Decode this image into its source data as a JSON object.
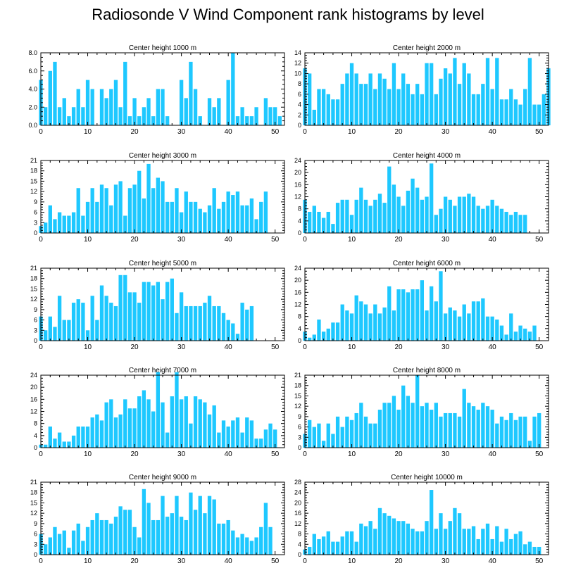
{
  "title": "Radiosonde V Wind Component rank histograms by level",
  "colors": {
    "bar": "#1EC8FF",
    "axis": "#000000"
  },
  "chart_data": [
    {
      "type": "bar",
      "title": "Center height 1000 m",
      "xlim": [
        0,
        52
      ],
      "ylim": [
        0,
        8
      ],
      "yticks": [
        0,
        2,
        4,
        6,
        8
      ],
      "ytick_labels": [
        "0.0",
        "2.0",
        "4.0",
        "6.0",
        "8.0"
      ],
      "xticks": [
        0,
        10,
        20,
        30,
        40,
        50
      ],
      "values": [
        5,
        2,
        6,
        7,
        2,
        3,
        1,
        2,
        4,
        2,
        5,
        4,
        0,
        4,
        3,
        4,
        5,
        2,
        7,
        1,
        3,
        1,
        2,
        3,
        1,
        4,
        4,
        1,
        0,
        0,
        5,
        3,
        7,
        4,
        1,
        0,
        3,
        2,
        3,
        0,
        5,
        8,
        1,
        2,
        1,
        1,
        2,
        0,
        3,
        2,
        2,
        1,
        0
      ]
    },
    {
      "type": "bar",
      "title": "Center height 2000 m",
      "xlim": [
        0,
        52
      ],
      "ylim": [
        0,
        14
      ],
      "yticks": [
        0,
        2,
        4,
        6,
        8,
        10,
        12,
        14
      ],
      "ytick_labels": [
        "0",
        "2",
        "4",
        "6",
        "8",
        "10",
        "12",
        "14"
      ],
      "xticks": [
        0,
        10,
        20,
        30,
        40,
        50
      ],
      "values": [
        11,
        10,
        3,
        7,
        7,
        6,
        5,
        5,
        8,
        10,
        12,
        10,
        8,
        8,
        10,
        7,
        10,
        9,
        7,
        12,
        7,
        10,
        8,
        6,
        8,
        6,
        12,
        12,
        6,
        9,
        11,
        10,
        13,
        8,
        12,
        10,
        6,
        6,
        8,
        13,
        7,
        13,
        5,
        5,
        7,
        5,
        4,
        7,
        13,
        4,
        4,
        6,
        11
      ]
    },
    {
      "type": "bar",
      "title": "Center height 3000 m",
      "xlim": [
        0,
        52
      ],
      "ylim": [
        0,
        21
      ],
      "yticks": [
        0,
        3,
        6,
        9,
        12,
        15,
        18,
        21
      ],
      "ytick_labels": [
        "0",
        "3",
        "6",
        "9",
        "12",
        "15",
        "18",
        "21"
      ],
      "xticks": [
        0,
        10,
        20,
        30,
        40,
        50
      ],
      "values": [
        2,
        3,
        8,
        4,
        6,
        5,
        5,
        6,
        13,
        5,
        9,
        13,
        9,
        14,
        13,
        8,
        14,
        15,
        5,
        13,
        14,
        18,
        10,
        20,
        13,
        16,
        15,
        9,
        9,
        13,
        6,
        12,
        9,
        9,
        7,
        6,
        8,
        13,
        7,
        9,
        12,
        11,
        12,
        8,
        8,
        10,
        4,
        9,
        12,
        0,
        0,
        0,
        0
      ]
    },
    {
      "type": "bar",
      "title": "Center height 4000 m",
      "xlim": [
        0,
        52
      ],
      "ylim": [
        0,
        24
      ],
      "yticks": [
        0,
        4,
        8,
        12,
        16,
        20,
        24
      ],
      "ytick_labels": [
        "0",
        "4",
        "8",
        "12",
        "16",
        "20",
        "24"
      ],
      "xticks": [
        0,
        10,
        20,
        30,
        40,
        50
      ],
      "values": [
        11,
        7,
        9,
        7,
        5,
        7,
        3,
        10,
        11,
        11,
        6,
        11,
        15,
        11,
        9,
        11,
        13,
        10,
        22,
        16,
        12,
        9,
        14,
        18,
        15,
        11,
        12,
        23,
        6,
        8,
        12,
        11,
        9,
        12,
        12,
        13,
        12,
        9,
        8,
        9,
        11,
        9,
        8,
        7,
        6,
        7,
        6,
        6,
        0,
        0,
        0,
        0,
        0
      ]
    },
    {
      "type": "bar",
      "title": "Center height 5000 m",
      "xlim": [
        0,
        52
      ],
      "ylim": [
        0,
        21
      ],
      "yticks": [
        0,
        3,
        6,
        9,
        12,
        15,
        18,
        21
      ],
      "ytick_labels": [
        "0",
        "3",
        "6",
        "9",
        "12",
        "15",
        "18",
        "21"
      ],
      "xticks": [
        0,
        10,
        20,
        30,
        40,
        50
      ],
      "values": [
        7,
        3,
        7,
        4,
        13,
        6,
        6,
        11,
        12,
        11,
        3,
        13,
        6,
        16,
        13,
        11,
        10,
        19,
        19,
        14,
        14,
        11,
        17,
        17,
        16,
        17,
        12,
        17,
        18,
        8,
        14,
        10,
        10,
        10,
        10,
        11,
        13,
        10,
        10,
        8,
        6,
        5,
        2,
        11,
        9,
        10,
        0,
        0,
        0,
        0,
        0,
        0,
        0
      ]
    },
    {
      "type": "bar",
      "title": "Center height 6000 m",
      "xlim": [
        0,
        52
      ],
      "ylim": [
        0,
        24
      ],
      "yticks": [
        0,
        4,
        8,
        12,
        16,
        20,
        24
      ],
      "ytick_labels": [
        "0",
        "4",
        "8",
        "12",
        "16",
        "20",
        "24"
      ],
      "xticks": [
        0,
        10,
        20,
        30,
        40,
        50
      ],
      "values": [
        3,
        1,
        2,
        7,
        3,
        4,
        6,
        6,
        12,
        10,
        9,
        15,
        13,
        12,
        9,
        12,
        9,
        11,
        18,
        10,
        17,
        17,
        16,
        17,
        17,
        20,
        10,
        18,
        13,
        23,
        9,
        11,
        10,
        8,
        12,
        9,
        13,
        13,
        14,
        8,
        8,
        7,
        5,
        2,
        9,
        3,
        5,
        4,
        3,
        5,
        0,
        0,
        0
      ]
    },
    {
      "type": "bar",
      "title": "Center height 7000 m",
      "xlim": [
        0,
        52
      ],
      "ylim": [
        0,
        24
      ],
      "yticks": [
        0,
        4,
        8,
        12,
        16,
        20,
        24
      ],
      "ytick_labels": [
        "0",
        "4",
        "8",
        "12",
        "16",
        "20",
        "24"
      ],
      "xticks": [
        0,
        10,
        20,
        30,
        40,
        50
      ],
      "values": [
        1,
        1,
        7,
        3,
        5,
        2,
        2,
        4,
        7,
        7,
        7,
        10,
        11,
        9,
        15,
        16,
        10,
        11,
        16,
        13,
        13,
        17,
        19,
        16,
        12,
        25,
        15,
        5,
        17,
        25,
        16,
        17,
        8,
        17,
        16,
        15,
        11,
        14,
        5,
        9,
        7,
        9,
        10,
        5,
        10,
        9,
        3,
        3,
        6,
        8,
        6,
        0,
        0
      ]
    },
    {
      "type": "bar",
      "title": "Center height 8000 m",
      "xlim": [
        0,
        52
      ],
      "ylim": [
        0,
        21
      ],
      "yticks": [
        0,
        3,
        6,
        9,
        12,
        15,
        18,
        21
      ],
      "ytick_labels": [
        "0",
        "3",
        "6",
        "9",
        "12",
        "15",
        "18",
        "21"
      ],
      "xticks": [
        0,
        10,
        20,
        30,
        40,
        50
      ],
      "values": [
        4,
        8,
        6,
        7,
        2,
        7,
        4,
        9,
        6,
        9,
        8,
        10,
        13,
        9,
        7,
        7,
        11,
        13,
        13,
        15,
        11,
        18,
        15,
        13,
        21,
        12,
        13,
        11,
        13,
        9,
        10,
        10,
        10,
        9,
        17,
        13,
        12,
        11,
        13,
        12,
        11,
        7,
        9,
        8,
        10,
        8,
        9,
        9,
        2,
        9,
        10,
        0,
        0
      ]
    },
    {
      "type": "bar",
      "title": "Center height 9000 m",
      "xlim": [
        0,
        52
      ],
      "ylim": [
        0,
        21
      ],
      "yticks": [
        0,
        3,
        6,
        9,
        12,
        15,
        18,
        21
      ],
      "ytick_labels": [
        "0",
        "3",
        "6",
        "9",
        "12",
        "15",
        "18",
        "21"
      ],
      "xticks": [
        0,
        10,
        20,
        30,
        40,
        50
      ],
      "values": [
        6,
        3,
        5,
        8,
        6,
        7,
        2,
        7,
        9,
        4,
        8,
        10,
        12,
        10,
        10,
        9,
        11,
        14,
        13,
        13,
        8,
        5,
        19,
        15,
        10,
        10,
        17,
        11,
        12,
        17,
        11,
        10,
        18,
        13,
        17,
        12,
        17,
        16,
        9,
        9,
        10,
        7,
        5,
        6,
        5,
        4,
        5,
        8,
        15,
        8,
        0,
        0,
        0
      ]
    },
    {
      "type": "bar",
      "title": "Center height 10000 m",
      "xlim": [
        0,
        52
      ],
      "ylim": [
        0,
        28
      ],
      "yticks": [
        0,
        4,
        8,
        12,
        16,
        20,
        24,
        28
      ],
      "ytick_labels": [
        "0",
        "4",
        "8",
        "12",
        "16",
        "20",
        "24",
        "28"
      ],
      "xticks": [
        0,
        10,
        20,
        30,
        40,
        50
      ],
      "values": [
        2,
        3,
        8,
        6,
        7,
        9,
        5,
        5,
        7,
        9,
        9,
        5,
        12,
        11,
        13,
        10,
        18,
        16,
        15,
        14,
        13,
        13,
        12,
        10,
        9,
        9,
        13,
        25,
        10,
        16,
        10,
        13,
        18,
        16,
        10,
        10,
        11,
        6,
        10,
        12,
        6,
        11,
        5,
        10,
        6,
        8,
        9,
        4,
        5,
        3,
        3,
        0,
        0
      ]
    }
  ]
}
